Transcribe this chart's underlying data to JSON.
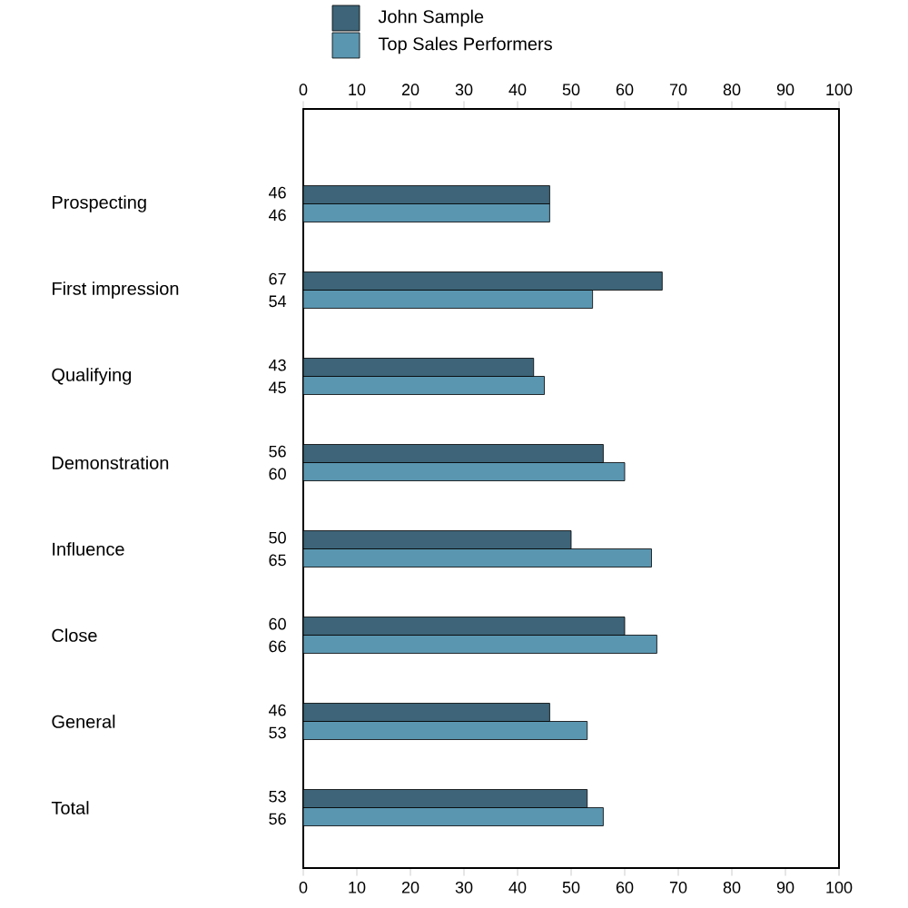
{
  "chart_data": {
    "type": "bar",
    "orientation": "horizontal",
    "categories": [
      "Prospecting",
      "First impression",
      "Qualifying",
      "Demonstration",
      "Influence",
      "Close",
      "General",
      "Total"
    ],
    "series": [
      {
        "name": "John Sample",
        "color": "#3d6478",
        "values": [
          46,
          67,
          43,
          56,
          50,
          60,
          46,
          53
        ]
      },
      {
        "name": "Top Sales Performers",
        "color": "#5a96b0",
        "values": [
          46,
          54,
          45,
          60,
          65,
          66,
          53,
          56
        ]
      }
    ],
    "xlim": [
      0,
      100
    ],
    "xticks": [
      0,
      10,
      20,
      30,
      40,
      50,
      60,
      70,
      80,
      90,
      100
    ],
    "x2lim": [
      0,
      100
    ],
    "x2ticks": [
      0,
      10,
      20,
      30,
      40,
      50,
      60,
      70,
      80,
      90,
      100
    ],
    "data_labels": true,
    "legend": "top",
    "grid": false
  }
}
